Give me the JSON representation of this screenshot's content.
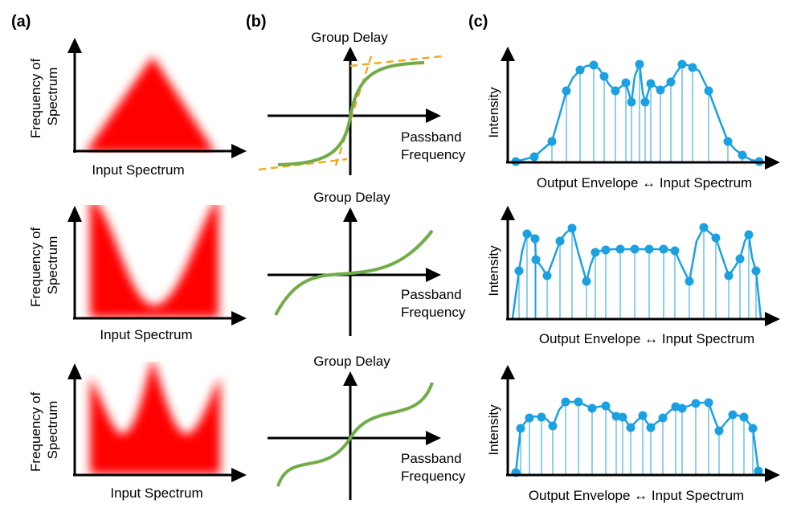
{
  "panel_labels": [
    "(a)",
    "(b)",
    "(c)"
  ],
  "a_rows": [
    {
      "ylabel": [
        "Frequency of",
        "Spectrum"
      ],
      "xlabel": "Input Spectrum"
    },
    {
      "ylabel": [
        "Frequency of",
        "Spectrum"
      ],
      "xlabel": "Input Spectrum"
    },
    {
      "ylabel": [
        "Frequency of",
        "Spectrum"
      ],
      "xlabel": "Input Spectrum"
    }
  ],
  "b_rows": [
    {
      "ylabel": "Group Delay",
      "xlabel": [
        "Passband",
        "Frequency"
      ]
    },
    {
      "ylabel": "Group Delay",
      "xlabel": [
        "Passband",
        "Frequency"
      ]
    },
    {
      "ylabel": "Group Delay",
      "xlabel": [
        "Passband",
        "Frequency"
      ]
    }
  ],
  "c_rows": [
    {
      "ylabel": "Intensity",
      "xlabel": "Output Envelope ↔ Input Spectrum"
    },
    {
      "ylabel": "Intensity",
      "xlabel": "Output Envelope ↔ Input Spectrum"
    },
    {
      "ylabel": "Intensity",
      "xlabel": "Output Envelope ↔ Input Spectrum"
    }
  ],
  "colors": {
    "axis": "#000000",
    "spectrum_fill": "#ff0000",
    "group_delay_curve": "#70ad47",
    "asymptote_dash": "#f4a81d",
    "intensity_trace": "#1ba1e2"
  }
}
